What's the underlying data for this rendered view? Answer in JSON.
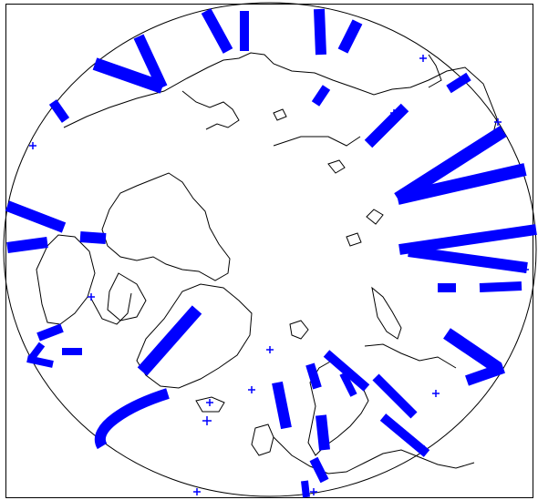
{
  "figure": {
    "title": "",
    "projection": "polar-stereographic-north",
    "coastline_color": "#000000",
    "track_color": "#0000ff",
    "background": "#ffffff",
    "icons": [
      "satellite-ground-track-icon",
      "observation-cross-icon"
    ]
  }
}
